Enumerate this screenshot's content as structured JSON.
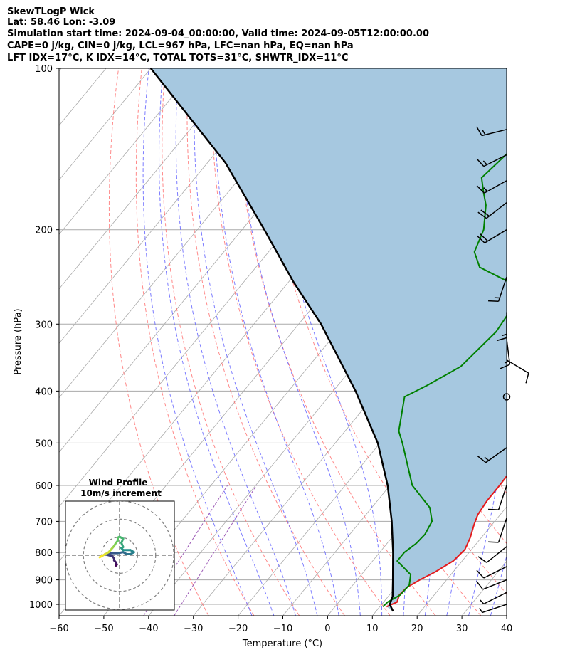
{
  "title": {
    "line1": "SkewTLogP Wick",
    "line2": "Lat: 58.46   Lon: -3.09",
    "line3": "Simulation start time: 2024-09-04_00:00:00, Valid time: 2024-09-05T12:00:00.00",
    "line4": "CAPE=0 j/kg, CIN=0 j/kg, LCL=967 hPa, LFC=nan hPa, EQ=nan hPa",
    "line5": "LFT IDX=17°C, K IDX=14°C, TOTAL TOTS=31°C, SHWTR_IDX=11°C"
  },
  "colors": {
    "temperature": "#e41a1c",
    "dewpoint": "#008000",
    "parcel": "#000000",
    "cape_fill": "#a6c8e0",
    "dry_adiabat": "#ff6b6b",
    "moist_adiabat": "#5b5bff",
    "mixing_ratio": "#9b59b6",
    "isotherm": "#aaaaaa"
  },
  "chart_data": [
    {
      "type": "line",
      "subtype": "skew-t log-p",
      "xlabel": "Temperature (°C)",
      "ylabel": "Pressure (hPa)",
      "xlim": [
        -60,
        40
      ],
      "ylim": [
        1050,
        100
      ],
      "y_scale": "log",
      "grid": true,
      "x_ticks": [
        "−60",
        "−50",
        "−40",
        "−30",
        "−20",
        "−10",
        "0",
        "10",
        "20",
        "30",
        "40"
      ],
      "x_tick_values": [
        -60,
        -50,
        -40,
        -30,
        -20,
        -10,
        0,
        10,
        20,
        30,
        40
      ],
      "y_ticks": [
        "100",
        "200",
        "300",
        "400",
        "500",
        "600",
        "700",
        "800",
        "900",
        "1000"
      ],
      "y_tick_values": [
        100,
        200,
        300,
        400,
        500,
        600,
        700,
        800,
        900,
        1000
      ],
      "series": [
        {
          "role": "temperature",
          "points": [
            [
              1010,
              11.5
            ],
            [
              990,
              13
            ],
            [
              960,
              12.2
            ],
            [
              930,
              12.5
            ],
            [
              900,
              14
            ],
            [
              870,
              16
            ],
            [
              830,
              18
            ],
            [
              790,
              18.5
            ],
            [
              750,
              17.5
            ],
            [
              710,
              16
            ],
            [
              680,
              15
            ],
            [
              640,
              14.5
            ],
            [
              600,
              14.5
            ],
            [
              560,
              14.3
            ],
            [
              520,
              13.5
            ],
            [
              480,
              12.5
            ],
            [
              440,
              10.3
            ],
            [
              400,
              7
            ],
            [
              370,
              4
            ],
            [
              340,
              1.5
            ],
            [
              310,
              -0.5
            ],
            [
              290,
              -2.7
            ],
            [
              260,
              -5.8
            ],
            [
              240,
              -8
            ],
            [
              225,
              -8
            ],
            [
              215,
              -8
            ],
            [
              195,
              -5
            ],
            [
              175,
              -3
            ],
            [
              160,
              -3
            ],
            [
              140,
              -3.5
            ],
            [
              125,
              -4
            ],
            [
              112,
              -5.5
            ],
            [
              100,
              -8
            ]
          ]
        },
        {
          "role": "dewpoint",
          "points": [
            [
              1010,
              10.7
            ],
            [
              990,
              10.9
            ],
            [
              960,
              12.4
            ],
            [
              920,
              12.6
            ],
            [
              880,
              11
            ],
            [
              830,
              5.5
            ],
            [
              800,
              5.5
            ],
            [
              770,
              6.5
            ],
            [
              740,
              6.8
            ],
            [
              700,
              6
            ],
            [
              660,
              3
            ],
            [
              600,
              -5
            ],
            [
              500,
              -15
            ],
            [
              475,
              -18
            ],
            [
              410,
              -23
            ],
            [
              390,
              -20
            ],
            [
              360,
              -16
            ],
            [
              310,
              -14.5
            ],
            [
              290,
              -15
            ],
            [
              265,
              -17
            ],
            [
              250,
              -21
            ],
            [
              235,
              -30
            ],
            [
              220,
              -34
            ],
            [
              200,
              -36
            ],
            [
              180,
              -40
            ],
            [
              170,
              -43
            ],
            [
              160,
              -46
            ],
            [
              125,
              -43
            ],
            [
              100,
              -36
            ]
          ]
        },
        {
          "role": "parcel",
          "points": [
            [
              1030,
              13.8
            ],
            [
              1000,
              11.8
            ],
            [
              967,
              11
            ],
            [
              900,
              8
            ],
            [
              800,
              3
            ],
            [
              700,
              -3
            ],
            [
              600,
              -10.5
            ],
            [
              500,
              -20.5
            ],
            [
              400,
              -35
            ],
            [
              300,
              -55
            ],
            [
              250,
              -69
            ],
            [
              200,
              -85
            ],
            [
              150,
              -106
            ],
            [
              100,
              -140
            ]
          ]
        }
      ],
      "wind_barbs": [
        {
          "pressure": 130,
          "u": 8,
          "v": 2
        },
        {
          "pressure": 145,
          "u": 8,
          "v": 4
        },
        {
          "pressure": 162,
          "u": 9,
          "v": 5
        },
        {
          "pressure": 178,
          "u": 9,
          "v": 7
        },
        {
          "pressure": 200,
          "u": 10,
          "v": 6
        },
        {
          "pressure": 245,
          "u": 3,
          "v": 9
        },
        {
          "pressure": 285,
          "u": 0,
          "v": 8
        },
        {
          "pressure": 320,
          "u": -1,
          "v": 8
        },
        {
          "pressure": 350,
          "u": -5,
          "v": 3
        },
        {
          "pressure": 410,
          "u": 0,
          "v": 0
        },
        {
          "pressure": 510,
          "u": 7,
          "v": 5
        },
        {
          "pressure": 600,
          "u": 2,
          "v": 6
        },
        {
          "pressure": 690,
          "u": 2,
          "v": 6
        },
        {
          "pressure": 780,
          "u": 5,
          "v": 4
        },
        {
          "pressure": 850,
          "u": 6,
          "v": 3
        },
        {
          "pressure": 900,
          "u": 5,
          "v": 2
        },
        {
          "pressure": 950,
          "u": 4,
          "v": 2
        },
        {
          "pressure": 1000,
          "u": 3,
          "v": 1
        }
      ]
    },
    {
      "type": "line",
      "subtype": "hodograph",
      "title": "Wind Profile",
      "subtitle": "10m/s increment",
      "rings_ms": [
        10,
        20,
        30
      ],
      "uv_points": [
        [
          -2,
          -10
        ],
        [
          -1.5,
          -9
        ],
        [
          -2,
          -7
        ],
        [
          -3,
          -5
        ],
        [
          -3,
          -3
        ],
        [
          -4,
          -1
        ],
        [
          -6,
          0
        ],
        [
          -8,
          1
        ],
        [
          -4,
          2
        ],
        [
          -1,
          2
        ],
        [
          2,
          3
        ],
        [
          4,
          1
        ],
        [
          6,
          1
        ],
        [
          8,
          3
        ],
        [
          6,
          5
        ],
        [
          2,
          5
        ],
        [
          1,
          7
        ],
        [
          2,
          8
        ],
        [
          1,
          12
        ],
        [
          2,
          16
        ],
        [
          0,
          18
        ],
        [
          -1,
          17
        ],
        [
          -1,
          14
        ],
        [
          -2,
          12
        ],
        [
          -3,
          9
        ],
        [
          -4,
          7
        ],
        [
          -5,
          5
        ],
        [
          -6,
          3
        ],
        [
          -8,
          1
        ],
        [
          -10,
          -1
        ],
        [
          -11,
          -2
        ]
      ]
    }
  ]
}
